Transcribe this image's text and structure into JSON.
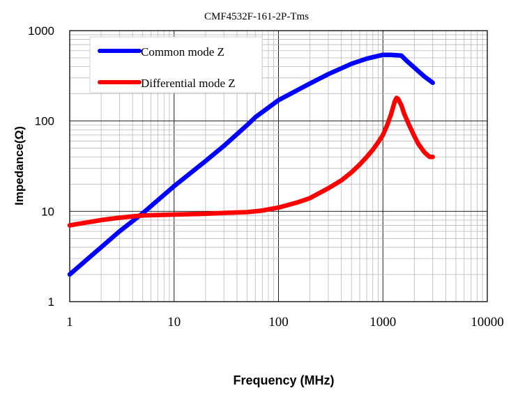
{
  "chart_data": {
    "type": "line",
    "title": "CMF4532F-161-2P-Tms",
    "xlabel": "Frequency (MHz)",
    "ylabel": "Impedance(Ω)",
    "x_scale": "log",
    "y_scale": "log",
    "xlim": [
      1,
      10000
    ],
    "ylim": [
      1,
      1000
    ],
    "x_ticks": [
      "1",
      "10",
      "100",
      "1000",
      "10000"
    ],
    "y_ticks": [
      "1",
      "10",
      "100",
      "1000"
    ],
    "grid": true,
    "legend_position": "top-left",
    "series": [
      {
        "name": "Common mode Z",
        "color": "#0000ff",
        "x": [
          1,
          2,
          3,
          5,
          10,
          20,
          30,
          50,
          60,
          100,
          200,
          300,
          500,
          700,
          1000,
          1200,
          1500,
          1700,
          2000,
          2500,
          3000
        ],
        "y": [
          2,
          4,
          6,
          9.5,
          19,
          36,
          53,
          90,
          110,
          170,
          260,
          330,
          430,
          490,
          540,
          540,
          530,
          460,
          390,
          310,
          265
        ]
      },
      {
        "name": "Differential mode Z",
        "color": "#ff0000",
        "x": [
          1,
          2,
          3,
          5,
          10,
          20,
          30,
          50,
          70,
          100,
          150,
          200,
          300,
          400,
          500,
          600,
          700,
          800,
          900,
          1000,
          1100,
          1200,
          1300,
          1350,
          1400,
          1500,
          1600,
          1800,
          2000,
          2200,
          2500,
          2800,
          3000
        ],
        "y": [
          7,
          8,
          8.5,
          9,
          9.2,
          9.4,
          9.6,
          9.8,
          10.2,
          11,
          12.5,
          14,
          18,
          22,
          27,
          33,
          40,
          48,
          58,
          70,
          90,
          120,
          165,
          180,
          175,
          150,
          120,
          88,
          68,
          55,
          45,
          40,
          40
        ]
      }
    ]
  }
}
